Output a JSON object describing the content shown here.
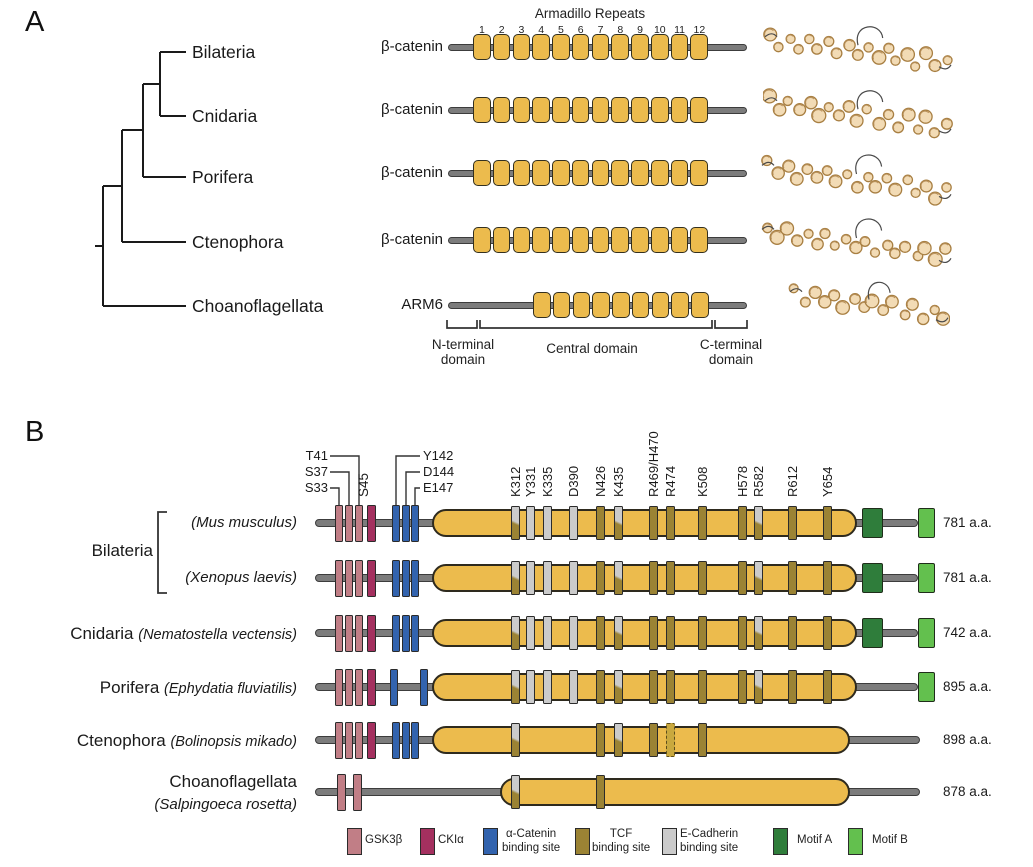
{
  "panelA": {
    "panel_label": "A",
    "armadillo_title": "Armadillo Repeats",
    "repeat_numbers": [
      "1",
      "2",
      "3",
      "4",
      "5",
      "6",
      "7",
      "8",
      "9",
      "10",
      "11",
      "12"
    ],
    "taxa": [
      "Bilateria",
      "Cnidaria",
      "Porifera",
      "Ctenophora",
      "Choanoflagellata"
    ],
    "rows": [
      {
        "taxon": "Bilateria",
        "protein": "β-catenin",
        "repeats": 12
      },
      {
        "taxon": "Cnidaria",
        "protein": "β-catenin",
        "repeats": 12
      },
      {
        "taxon": "Porifera",
        "protein": "β-catenin",
        "repeats": 12
      },
      {
        "taxon": "Ctenophora",
        "protein": "β-catenin",
        "repeats": 12
      },
      {
        "taxon": "Choanoflagellata",
        "protein": "ARM6",
        "repeats": 9
      }
    ],
    "domain_labels": [
      "N-terminal domain",
      "Central domain",
      "C-terminal domain"
    ]
  },
  "panelB": {
    "panel_label": "B",
    "group_bilateria": "Bilateria",
    "gsk3b_site_labels": [
      "T41",
      "S37",
      "S33"
    ],
    "ckia_site_label": "S45",
    "alpha_catenin_site_labels": [
      "Y142",
      "D144",
      "E147"
    ],
    "arm_site_labels": [
      "K312",
      "Y331",
      "K335",
      "D390",
      "N426",
      "K435",
      "R469/H470",
      "R474",
      "K508",
      "H578",
      "R582",
      "R612",
      "Y654"
    ],
    "rows": [
      {
        "group": "",
        "species": "(Mus musculus)",
        "aa": "781 a.a.",
        "nterm": "full",
        "alpha": "triple",
        "motifs": [
          "A",
          "B"
        ],
        "sites": [
          [
            "K312",
            "both"
          ],
          [
            "Y331",
            "ecad"
          ],
          [
            "K335",
            "ecad"
          ],
          [
            "D390",
            "ecad"
          ],
          [
            "N426",
            "tcf"
          ],
          [
            "K435",
            "both"
          ],
          [
            "R469/H470",
            "tcf"
          ],
          [
            "R474",
            "tcf"
          ],
          [
            "K508",
            "tcf"
          ],
          [
            "H578",
            "tcf"
          ],
          [
            "R582",
            "both"
          ],
          [
            "R612",
            "tcf"
          ],
          [
            "Y654",
            "tcf"
          ]
        ]
      },
      {
        "group": "",
        "species": "(Xenopus laevis)",
        "aa": "781 a.a.",
        "nterm": "full",
        "alpha": "triple",
        "motifs": [
          "A",
          "B"
        ],
        "sites": [
          [
            "K312",
            "both"
          ],
          [
            "Y331",
            "ecad"
          ],
          [
            "K335",
            "ecad"
          ],
          [
            "D390",
            "ecad"
          ],
          [
            "N426",
            "tcf"
          ],
          [
            "K435",
            "both"
          ],
          [
            "R469/H470",
            "tcf"
          ],
          [
            "R474",
            "tcf"
          ],
          [
            "K508",
            "tcf"
          ],
          [
            "H578",
            "tcf"
          ],
          [
            "R582",
            "both"
          ],
          [
            "R612",
            "tcf"
          ],
          [
            "Y654",
            "tcf"
          ]
        ]
      },
      {
        "group": "Cnidaria",
        "species": "(Nematostella vectensis)",
        "aa": "742 a.a.",
        "nterm": "full",
        "alpha": "triple",
        "motifs": [
          "A",
          "B"
        ],
        "sites": [
          [
            "K312",
            "both"
          ],
          [
            "Y331",
            "ecad"
          ],
          [
            "K335",
            "ecad"
          ],
          [
            "D390",
            "ecad"
          ],
          [
            "N426",
            "tcf"
          ],
          [
            "K435",
            "both"
          ],
          [
            "R469/H470",
            "tcf"
          ],
          [
            "R474",
            "tcf"
          ],
          [
            "K508",
            "tcf"
          ],
          [
            "H578",
            "tcf"
          ],
          [
            "R582",
            "both"
          ],
          [
            "R612",
            "tcf"
          ],
          [
            "Y654",
            "tcf"
          ]
        ]
      },
      {
        "group": "Porifera",
        "species": "(Ephydatia fluviatilis)",
        "aa": "895 a.a.",
        "nterm": "full",
        "alpha": "pair",
        "motifs": [
          "B"
        ],
        "sites": [
          [
            "K312",
            "both"
          ],
          [
            "Y331",
            "ecad"
          ],
          [
            "K335",
            "ecad"
          ],
          [
            "D390",
            "ecad"
          ],
          [
            "N426",
            "tcf"
          ],
          [
            "K435",
            "both"
          ],
          [
            "R469/H470",
            "tcf"
          ],
          [
            "R474",
            "tcf"
          ],
          [
            "K508",
            "tcf"
          ],
          [
            "H578",
            "tcf"
          ],
          [
            "R582",
            "both"
          ],
          [
            "R612",
            "tcf"
          ],
          [
            "Y654",
            "tcf"
          ]
        ]
      },
      {
        "group": "Ctenophora",
        "species": "(Bolinopsis mikado)",
        "aa": "898 a.a.",
        "nterm": "full",
        "alpha": "triple",
        "motifs": [],
        "sites": [
          [
            "K312",
            "both"
          ],
          [
            "N426",
            "tcf"
          ],
          [
            "K435",
            "both"
          ],
          [
            "R469/H470",
            "tcf"
          ],
          [
            "R474",
            "tcf_dashed"
          ],
          [
            "K508",
            "tcf"
          ]
        ]
      },
      {
        "group": "Choanoflagellata",
        "species": "(Salpingoeca rosetta)",
        "aa": "878 a.a.",
        "nterm": "reduced",
        "alpha": "none",
        "motifs": [],
        "stacked": true,
        "sites": [
          [
            "K312",
            "both"
          ],
          [
            "N426",
            "tcf"
          ]
        ]
      }
    ],
    "legend": [
      {
        "line1": "GSK3β",
        "color": "#C17E86"
      },
      {
        "line1": "CKIα",
        "color": "#A4305F"
      },
      {
        "line1": "α-Catenin",
        "line2": "binding site",
        "color": "#3263AE"
      },
      {
        "line1": "TCF",
        "line2": "binding site",
        "color": "#9B8334"
      },
      {
        "line1": "E-Cadherin",
        "line2": "binding site",
        "color": "#CBCBCB"
      },
      {
        "line1": "Motif A",
        "color": "#2F7D3B"
      },
      {
        "line1": "Motif B",
        "color": "#63C04E"
      }
    ],
    "colors": {
      "gsk3b": "#C17E86",
      "ckia": "#A4305F",
      "alpha": "#3263AE",
      "tcf": "#9B8334",
      "ecad": "#CBCBCB",
      "motifA": "#2F7D3B",
      "motifB": "#63C04E",
      "domain": "#ECBB4D",
      "backbone": "#7C7C7C",
      "dashed_fill": "#C9A83E"
    }
  }
}
